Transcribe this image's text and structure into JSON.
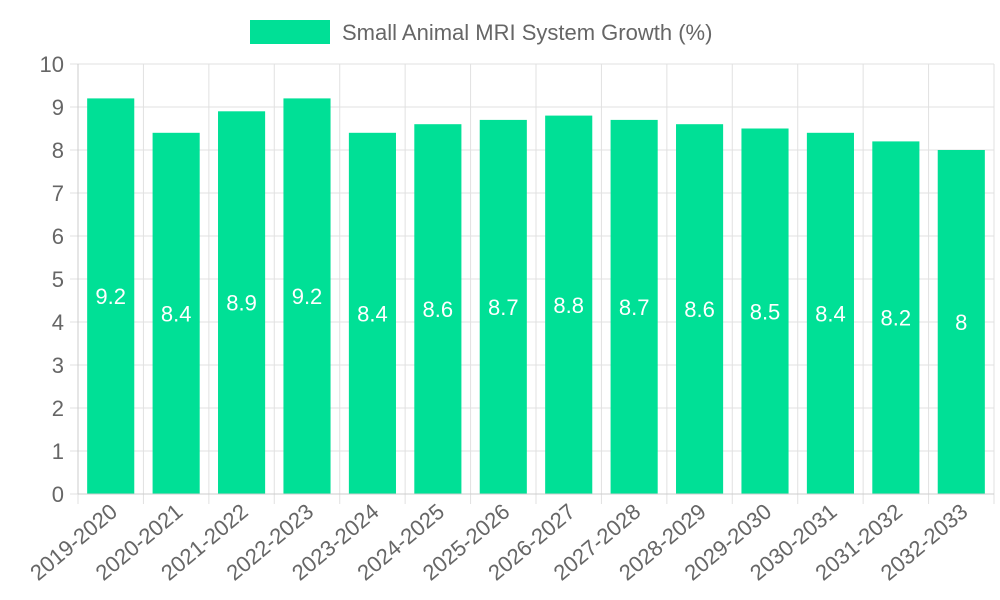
{
  "chart_data": {
    "type": "bar",
    "categories": [
      "2019-2020",
      "2020-2021",
      "2021-2022",
      "2022-2023",
      "2023-2024",
      "2024-2025",
      "2025-2026",
      "2026-2027",
      "2027-2028",
      "2028-2029",
      "2029-2030",
      "2030-2031",
      "2031-2032",
      "2032-2033"
    ],
    "series": [
      {
        "name": "Small Animal MRI System Growth (%)",
        "values": [
          9.2,
          8.4,
          8.9,
          9.2,
          8.4,
          8.6,
          8.7,
          8.8,
          8.7,
          8.6,
          8.5,
          8.4,
          8.2,
          8
        ]
      }
    ],
    "data_labels": [
      "9.2",
      "8.4",
      "8.9",
      "9.2",
      "8.4",
      "8.6",
      "8.7",
      "8.8",
      "8.7",
      "8.6",
      "8.5",
      "8.4",
      "8.2",
      "8"
    ],
    "y_ticks": [
      "0",
      "1",
      "2",
      "3",
      "4",
      "5",
      "6",
      "7",
      "8",
      "9",
      "10"
    ],
    "ylim": [
      0,
      10
    ],
    "grid": true,
    "legend_position": "top-center",
    "colors": {
      "bar": "#00e096",
      "text": "#666666",
      "label": "#ffffff",
      "grid": "#e1e1e1"
    }
  }
}
